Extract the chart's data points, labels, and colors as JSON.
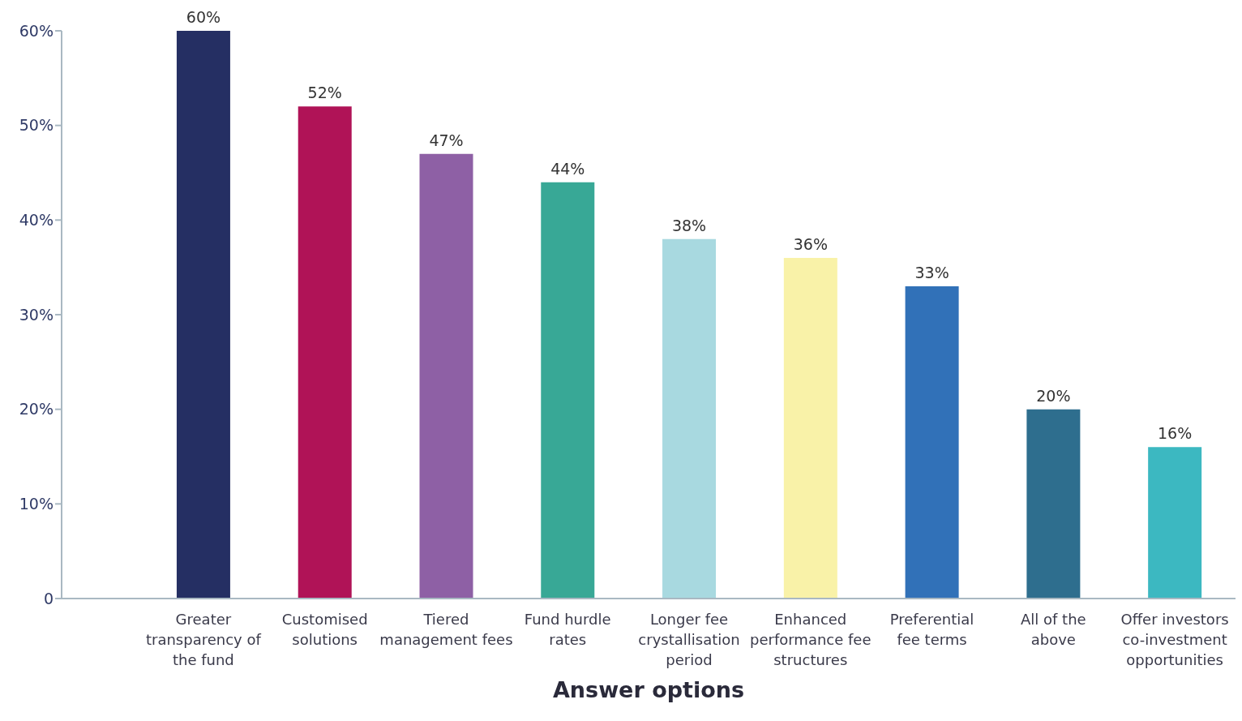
{
  "chart_data": {
    "type": "bar",
    "xlabel": "Answer options",
    "categories": [
      "Greater transparency of the fund",
      "Customised solutions",
      "Tiered management fees",
      "Fund hurdle rates",
      "Longer fee crystallisation period",
      "Enhanced performance fee structures",
      "Preferential fee terms",
      "All of the above",
      "Offer investors co-investment opportunities"
    ],
    "values": [
      60,
      52,
      47,
      44,
      38,
      36,
      33,
      20,
      16
    ],
    "colors": [
      "#252f63",
      "#b01357",
      "#8e60a5",
      "#38a896",
      "#a8d9e0",
      "#f9f2a8",
      "#3171b8",
      "#2e6e8e",
      "#3cb8c1"
    ],
    "value_labels": [
      "60%",
      "52%",
      "47%",
      "44%",
      "38%",
      "36%",
      "33%",
      "20%",
      "16%"
    ],
    "ylim": [
      0,
      60
    ],
    "yticks": [
      0,
      {
        "value": 10,
        "label": "10%"
      },
      {
        "value": 20,
        "label": "20%"
      },
      {
        "value": 30,
        "label": "30%"
      },
      {
        "value": 40,
        "label": "40%"
      },
      {
        "value": 50,
        "label": "50%"
      },
      {
        "value": 60,
        "label": "60%"
      }
    ],
    "grid": false,
    "legend": false
  }
}
